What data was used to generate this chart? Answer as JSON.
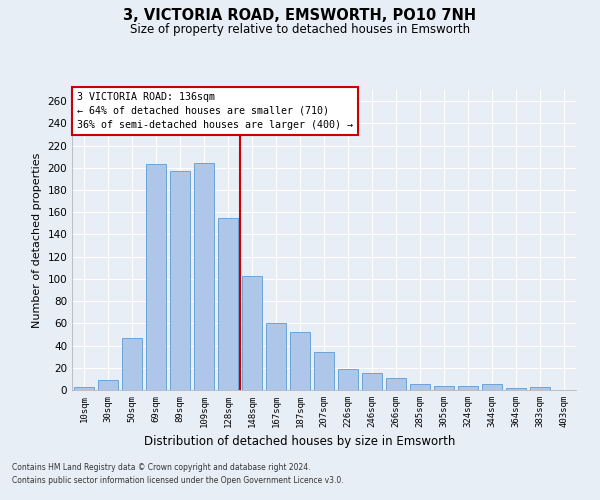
{
  "title": "3, VICTORIA ROAD, EMSWORTH, PO10 7NH",
  "subtitle": "Size of property relative to detached houses in Emsworth",
  "xlabel": "Distribution of detached houses by size in Emsworth",
  "ylabel": "Number of detached properties",
  "bar_color": "#aec6e8",
  "bar_edge_color": "#5b9bd5",
  "bg_color": "#e8eef6",
  "grid_color": "#ffffff",
  "categories": [
    "10sqm",
    "30sqm",
    "50sqm",
    "69sqm",
    "89sqm",
    "109sqm",
    "128sqm",
    "148sqm",
    "167sqm",
    "187sqm",
    "207sqm",
    "226sqm",
    "246sqm",
    "266sqm",
    "285sqm",
    "305sqm",
    "324sqm",
    "344sqm",
    "364sqm",
    "383sqm",
    "403sqm"
  ],
  "values": [
    3,
    9,
    47,
    203,
    197,
    204,
    155,
    103,
    60,
    52,
    34,
    19,
    15,
    11,
    5,
    4,
    4,
    5,
    2,
    3,
    0
  ],
  "ylim": [
    0,
    270
  ],
  "yticks": [
    0,
    20,
    40,
    60,
    80,
    100,
    120,
    140,
    160,
    180,
    200,
    220,
    240,
    260
  ],
  "property_line_x": 6.5,
  "property_line_color": "#cc0000",
  "annotation_text": "3 VICTORIA ROAD: 136sqm\n← 64% of detached houses are smaller (710)\n36% of semi-detached houses are larger (400) →",
  "annotation_box_color": "#ffffff",
  "annotation_box_edge": "#cc0000",
  "footer1": "Contains HM Land Registry data © Crown copyright and database right 2024.",
  "footer2": "Contains public sector information licensed under the Open Government Licence v3.0."
}
